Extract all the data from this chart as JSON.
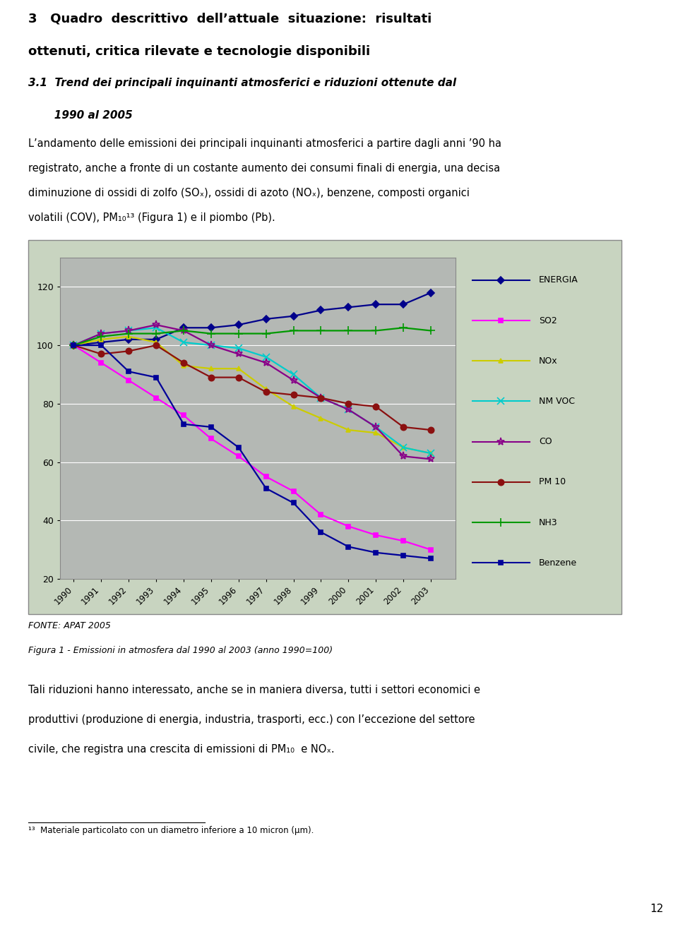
{
  "years": [
    1990,
    1991,
    1992,
    1993,
    1994,
    1995,
    1996,
    1997,
    1998,
    1999,
    2000,
    2001,
    2002,
    2003
  ],
  "series": {
    "ENERGIA": [
      100,
      101,
      102,
      102,
      106,
      106,
      107,
      109,
      110,
      112,
      113,
      114,
      114,
      118
    ],
    "SO2": [
      100,
      94,
      88,
      82,
      76,
      68,
      62,
      55,
      50,
      42,
      38,
      35,
      33,
      30
    ],
    "NOx": [
      100,
      102,
      103,
      101,
      93,
      92,
      92,
      85,
      79,
      75,
      71,
      70,
      65,
      63
    ],
    "NM VOC": [
      100,
      104,
      105,
      106,
      101,
      100,
      99,
      96,
      90,
      82,
      78,
      72,
      65,
      63
    ],
    "CO": [
      100,
      104,
      105,
      107,
      105,
      100,
      97,
      94,
      88,
      82,
      78,
      72,
      62,
      61
    ],
    "PM 10": [
      100,
      97,
      98,
      100,
      94,
      89,
      89,
      84,
      83,
      82,
      80,
      79,
      72,
      71
    ],
    "NH3": [
      100,
      103,
      104,
      104,
      105,
      104,
      104,
      104,
      105,
      105,
      105,
      105,
      106,
      105
    ],
    "Benzene": [
      100,
      100,
      91,
      89,
      73,
      72,
      65,
      51,
      46,
      36,
      31,
      29,
      28,
      27
    ]
  },
  "colors": {
    "ENERGIA": "#00008B",
    "SO2": "#FF00FF",
    "NOx": "#CCCC00",
    "NM VOC": "#00CCCC",
    "CO": "#880088",
    "PM 10": "#8B1010",
    "NH3": "#009900",
    "Benzene": "#000099"
  },
  "markers": {
    "ENERGIA": "D",
    "SO2": "s",
    "NOx": "^",
    "NM VOC": "x",
    "CO": "*",
    "PM 10": "o",
    "NH3": "+",
    "Benzene": "s"
  },
  "marker_sizes": {
    "ENERGIA": 5,
    "SO2": 5,
    "NOx": 5,
    "NM VOC": 7,
    "CO": 8,
    "PM 10": 6,
    "NH3": 9,
    "Benzene": 5
  },
  "filled": {
    "ENERGIA": true,
    "SO2": true,
    "NOx": true,
    "NM VOC": false,
    "CO": false,
    "PM 10": true,
    "NH3": false,
    "Benzene": true
  },
  "page_bg": "#FFFFFF",
  "chart_outer_bg": "#C8D4C0",
  "plot_bg": "#B4B8B4",
  "ylim": [
    20,
    130
  ],
  "yticks": [
    20,
    40,
    60,
    80,
    100,
    120
  ],
  "heading1_line1": "3   Quadro  descrittivo  dell’attuale  situazione:  risultati",
  "heading1_line2": "ottenuti, critica rilevate e tecnologie disponibili",
  "heading2_line1": "3.1  Trend dei principali inquinanti atmosferici e riduzioni ottenute dal",
  "heading2_line2": "       1990 al 2005",
  "para1_lines": [
    "L’andamento delle emissioni dei principali inquinanti atmosferici a partire dagli anni ’90 ha",
    "registrato, anche a fronte di un costante aumento dei consumi finali di energia, una decisa",
    "diminuzione di ossidi di zolfo (SOₓ), ossidi di azoto (NOₓ), benzene, composti organici",
    "volatili (COV), PM₁₀¹³ (Figura 1) e il piombo (Pb)."
  ],
  "fonte": "FONTE: APAT 2005",
  "figura_caption": "Figura 1 - Emissioni in atmosfera dal 1990 al 2003 (anno 1990=100)",
  "para2_lines": [
    "Tali riduzioni hanno interessato, anche se in maniera diversa, tutti i settori economici e",
    "produttivi (produzione di energia, industria, trasporti, ecc.) con l’eccezione del settore",
    "civile, che registra una crescita di emissioni di PM₁₀  e NOₓ."
  ],
  "footnote": "¹³  Materiale particolato con un diametro inferiore a 10 micron (μm).",
  "page_num": "12"
}
